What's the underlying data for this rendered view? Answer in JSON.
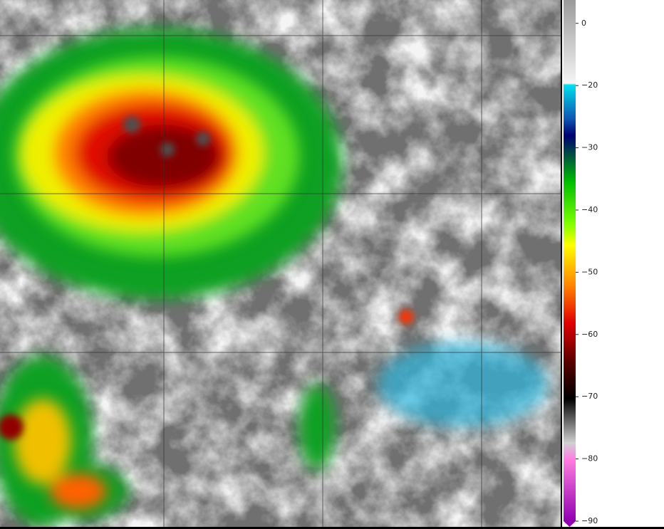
{
  "colorbar": {
    "ylim": [
      -90,
      7.5
    ],
    "yticks": [
      0,
      {
        "value": -20,
        "label": "−20"
      },
      {
        "value": -30,
        "label": "−30"
      },
      {
        "value": -40,
        "label": "−40"
      },
      {
        "value": -50,
        "label": "−50"
      },
      {
        "value": -60,
        "label": "−60"
      },
      {
        "value": -70,
        "label": "−70"
      },
      {
        "value": -80,
        "label": "−80"
      },
      {
        "value": -90,
        "label": "−90"
      }
    ]
  }
}
